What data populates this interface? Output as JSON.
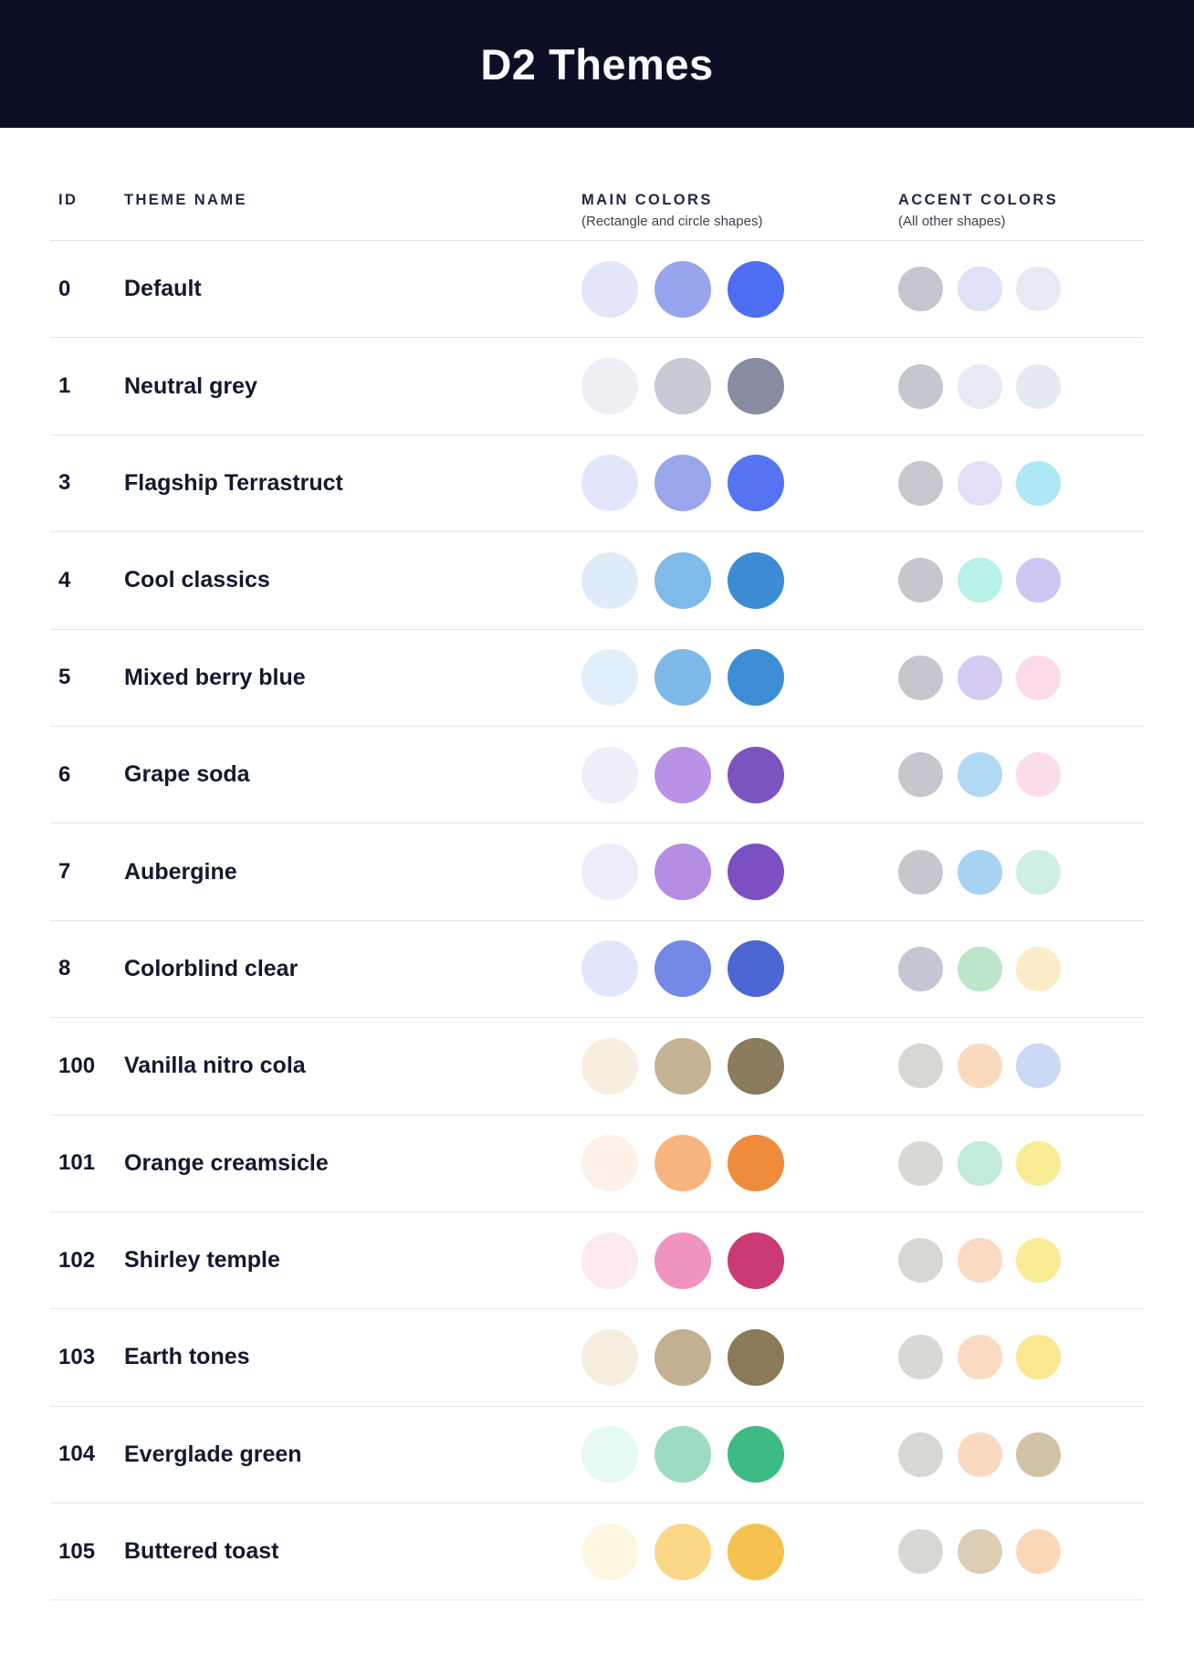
{
  "page": {
    "title": "D2 Themes",
    "banner_bg": "#0A0F25",
    "divider_color": "#E3E5EC"
  },
  "table": {
    "headers": {
      "id": "ID",
      "name": "THEME NAME",
      "main": "MAIN COLORS",
      "main_sub": "(Rectangle and circle shapes)",
      "accent": "ACCENT COLORS",
      "accent_sub": "(All other shapes)"
    },
    "rows": [
      {
        "id": "0",
        "name": "Default",
        "main": [
          "#E3E6F9",
          "#97A4EE",
          "#4D6EF2"
        ],
        "accent": [
          "#C4C5D0",
          "#DEE1F8",
          "#E7EAF6"
        ]
      },
      {
        "id": "1",
        "name": "Neutral grey",
        "main": [
          "#EDEFF5",
          "#C8CBD5",
          "#878CA0"
        ],
        "accent": [
          "#C4C6D0",
          "#E7EAF5",
          "#E5E9F3"
        ]
      },
      {
        "id": "3",
        "name": "Flagship Terrastruct",
        "main": [
          "#E2E6FA",
          "#9AA6EC",
          "#5674F1"
        ],
        "accent": [
          "#C6C7CF",
          "#E5DEF6",
          "#AEE8F6"
        ]
      },
      {
        "id": "4",
        "name": "Cool classics",
        "main": [
          "#DDECF8",
          "#7FBAE8",
          "#3B8CD3"
        ],
        "accent": [
          "#C5C6CE",
          "#B7F1E8",
          "#CFC5F1"
        ]
      },
      {
        "id": "5",
        "name": "Mixed berry blue",
        "main": [
          "#E1EFFA",
          "#7EB9E8",
          "#3D8DD6"
        ],
        "accent": [
          "#C5C6CE",
          "#D6CAF3",
          "#FBDBEB"
        ]
      },
      {
        "id": "6",
        "name": "Grape soda",
        "main": [
          "#F1ECFA",
          "#BA92E5",
          "#7D53C0"
        ],
        "accent": [
          "#C5C6CE",
          "#B2D9F4",
          "#FBDCEC"
        ]
      },
      {
        "id": "7",
        "name": "Aubergine",
        "main": [
          "#F0EBFA",
          "#B58DE2",
          "#7C50C3"
        ],
        "accent": [
          "#C5C6CE",
          "#A7D3F2",
          "#CEEFE2"
        ]
      },
      {
        "id": "8",
        "name": "Colorblind clear",
        "main": [
          "#E0E7FB",
          "#7389E5",
          "#4C66D4"
        ],
        "accent": [
          "#C4C6D3",
          "#BCE5CA",
          "#FBECC7"
        ]
      },
      {
        "id": "100",
        "name": "Vanilla nitro cola",
        "main": [
          "#F7EEDF",
          "#C6B294",
          "#8A7A5E"
        ],
        "accent": [
          "#D9D7D2",
          "#FBD9BC",
          "#CCD9F4"
        ]
      },
      {
        "id": "101",
        "name": "Orange creamsicle",
        "main": [
          "#FEF0E7",
          "#F7B47E",
          "#EE8C3C"
        ],
        "accent": [
          "#D9D8D4",
          "#C0ECD9",
          "#F7EC94"
        ]
      },
      {
        "id": "102",
        "name": "Shirley temple",
        "main": [
          "#FDE9F1",
          "#EE94BE",
          "#CB3A72"
        ],
        "accent": [
          "#D8D7D3",
          "#FCD9C2",
          "#F9EC95"
        ]
      },
      {
        "id": "103",
        "name": "Earth tones",
        "main": [
          "#F7EDDF",
          "#C3AF92",
          "#8A7A58"
        ],
        "accent": [
          "#D9D8D4",
          "#FBDAC3",
          "#F9E88F"
        ]
      },
      {
        "id": "104",
        "name": "Everglade green",
        "main": [
          "#E4F9EF",
          "#9CDCC0",
          "#3EBB85"
        ],
        "accent": [
          "#D8D7D3",
          "#FBD9C1",
          "#D2C3A8"
        ]
      },
      {
        "id": "105",
        "name": "Buttered toast",
        "main": [
          "#FFF6E0",
          "#FBD888",
          "#F7C14F"
        ],
        "accent": [
          "#D8D7D3",
          "#DCCEB4",
          "#FBD7B8"
        ]
      }
    ]
  }
}
